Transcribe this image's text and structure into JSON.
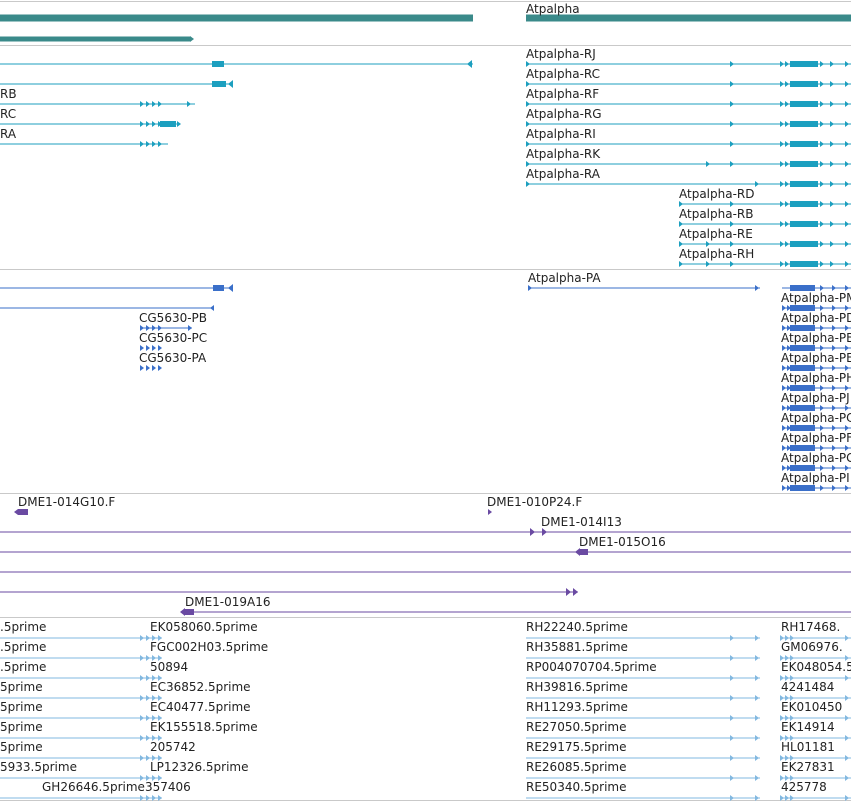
{
  "colors": {
    "genes": "#3a8a8a",
    "transcripts": "#1c9fbf",
    "proteins": "#3a6fc9",
    "cdna": "#6a4aa2",
    "ests": "#82b8e0",
    "divider": "#c9c9c9"
  },
  "tracks": {
    "genes": {
      "labels": [
        "Atpalpha"
      ]
    },
    "transcripts": {
      "labels": [
        "RB",
        "RC",
        "RA",
        "Atpalpha-RJ",
        "Atpalpha-RC",
        "Atpalpha-RF",
        "Atpalpha-RG",
        "Atpalpha-RI",
        "Atpalpha-RK",
        "Atpalpha-RA",
        "Atpalpha-RD",
        "Atpalpha-RB",
        "Atpalpha-RE",
        "Atpalpha-RH"
      ]
    },
    "proteins": {
      "labels": [
        "CG5630-PB",
        "CG5630-PC",
        "CG5630-PA",
        "Atpalpha-PA",
        "Atpalpha-PM",
        "Atpalpha-PD",
        "Atpalpha-PB",
        "Atpalpha-PE",
        "Atpalpha-PH",
        "Atpalpha-PJ",
        "Atpalpha-PC",
        "Atpalpha-PF",
        "Atpalpha-PG",
        "Atpalpha-PI"
      ]
    },
    "cdna": {
      "labels": [
        "DME1-014G10.F",
        "DME1-010P24.F",
        "DME1-014I13",
        "DME1-015O16",
        "DME1-019A16"
      ]
    },
    "ests": {
      "labels": [
        ".5prime",
        "EK058060.5prime",
        "RH22240.5prime",
        "RH17468.",
        ".5prime",
        "FGC002H03.5prime",
        "RH35881.5prime",
        "GM06976.",
        ".5prime",
        "50894",
        "RP004070704.5prime",
        "EK048054.5",
        "5prime",
        "EC36852.5prime",
        "RH39816.5prime",
        "4241484",
        "5prime",
        "EC40477.5prime",
        "RH11293.5prime",
        "EK010450",
        "5prime",
        "EK155518.5prime",
        "RE27050.5prime",
        "EK14914",
        "5prime",
        "205742",
        "RE29175.5prime",
        "HL01181",
        "5933.5prime",
        "LP12326.5prime",
        "RE26085.5prime",
        "EK27831",
        "GH26646.5prime",
        "357406",
        "RE50340.5prime",
        "425778"
      ]
    }
  }
}
